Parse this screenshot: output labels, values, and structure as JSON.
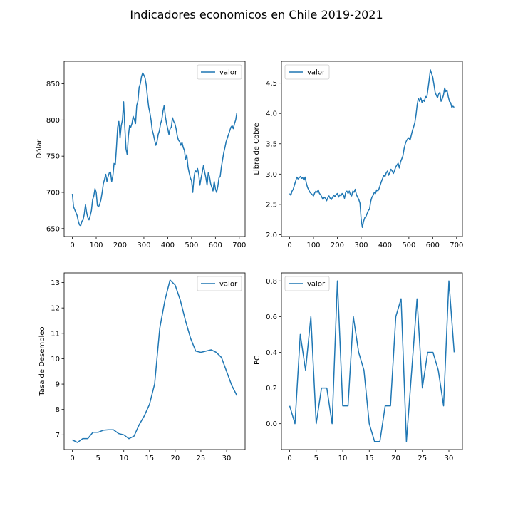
{
  "title": "Indicadores economicos en Chile 2019-2021",
  "colors": {
    "line": "#1f77b4",
    "axis": "#000000",
    "legend_border": "#cccccc",
    "background": "#ffffff"
  },
  "chart_data": [
    {
      "type": "line",
      "ylabel": "Dólar",
      "xlabel": "",
      "legend": "valor",
      "legend_loc": "upper right",
      "xlim": [
        -34.5,
        724.5
      ],
      "ylim": [
        639,
        881
      ],
      "xticks": [
        0,
        100,
        200,
        300,
        400,
        500,
        600,
        700
      ],
      "yticks": [
        650,
        700,
        750,
        800,
        850
      ],
      "x": [
        0,
        5,
        10,
        15,
        20,
        25,
        30,
        35,
        40,
        45,
        50,
        55,
        60,
        65,
        70,
        75,
        80,
        85,
        90,
        95,
        100,
        105,
        110,
        115,
        120,
        125,
        130,
        135,
        140,
        145,
        150,
        155,
        160,
        165,
        170,
        175,
        180,
        185,
        190,
        195,
        200,
        205,
        210,
        215,
        220,
        225,
        230,
        235,
        240,
        245,
        250,
        255,
        260,
        265,
        270,
        275,
        280,
        285,
        290,
        295,
        300,
        305,
        310,
        315,
        320,
        325,
        330,
        335,
        340,
        345,
        350,
        355,
        360,
        365,
        370,
        375,
        380,
        385,
        390,
        395,
        400,
        405,
        410,
        415,
        420,
        425,
        430,
        435,
        440,
        445,
        450,
        455,
        460,
        465,
        470,
        475,
        480,
        485,
        490,
        495,
        500,
        505,
        510,
        515,
        520,
        525,
        530,
        535,
        540,
        545,
        550,
        555,
        560,
        565,
        570,
        575,
        580,
        585,
        590,
        595,
        600,
        605,
        610,
        615,
        620,
        625,
        630,
        635,
        640,
        645,
        650,
        655,
        660,
        665,
        670,
        675,
        680,
        685,
        690
      ],
      "y": [
        698,
        680,
        676,
        672,
        668,
        660,
        655,
        654,
        660,
        662,
        670,
        683,
        672,
        665,
        662,
        668,
        675,
        690,
        695,
        705,
        700,
        682,
        680,
        684,
        690,
        700,
        712,
        718,
        725,
        715,
        722,
        727,
        728,
        715,
        723,
        740,
        738,
        762,
        790,
        798,
        775,
        792,
        800,
        825,
        790,
        760,
        752,
        778,
        792,
        790,
        795,
        805,
        800,
        795,
        820,
        826,
        845,
        850,
        860,
        865,
        862,
        858,
        848,
        832,
        818,
        810,
        800,
        786,
        780,
        772,
        765,
        770,
        780,
        785,
        795,
        800,
        812,
        820,
        805,
        795,
        788,
        780,
        788,
        790,
        803,
        798,
        795,
        788,
        778,
        772,
        770,
        765,
        769,
        762,
        758,
        745,
        752,
        735,
        727,
        720,
        716,
        700,
        720,
        730,
        728,
        733,
        725,
        710,
        720,
        728,
        737,
        728,
        720,
        710,
        727,
        722,
        712,
        707,
        702,
        715,
        705,
        700,
        708,
        720,
        722,
        735,
        745,
        755,
        762,
        770,
        775,
        780,
        785,
        790,
        792,
        788,
        795,
        800,
        810
      ]
    },
    {
      "type": "line",
      "ylabel": "Libra de Cobre",
      "xlabel": "",
      "legend": "valor",
      "legend_loc": "upper left",
      "xlim": [
        -34.5,
        724.5
      ],
      "ylim": [
        1.97,
        4.86
      ],
      "xticks": [
        0,
        100,
        200,
        300,
        400,
        500,
        600,
        700
      ],
      "yticks": [
        2.0,
        2.5,
        3.0,
        3.5,
        4.0,
        4.5
      ],
      "x": [
        0,
        5,
        10,
        15,
        20,
        25,
        30,
        35,
        40,
        45,
        50,
        55,
        60,
        65,
        70,
        75,
        80,
        85,
        90,
        95,
        100,
        105,
        110,
        115,
        120,
        125,
        130,
        135,
        140,
        145,
        150,
        155,
        160,
        165,
        170,
        175,
        180,
        185,
        190,
        195,
        200,
        205,
        210,
        215,
        220,
        225,
        230,
        235,
        240,
        245,
        250,
        255,
        260,
        265,
        270,
        275,
        280,
        285,
        290,
        295,
        300,
        305,
        310,
        315,
        320,
        325,
        330,
        335,
        340,
        345,
        350,
        355,
        360,
        365,
        370,
        375,
        380,
        385,
        390,
        395,
        400,
        405,
        410,
        415,
        420,
        425,
        430,
        435,
        440,
        445,
        450,
        455,
        460,
        465,
        470,
        475,
        480,
        485,
        490,
        495,
        500,
        505,
        510,
        515,
        520,
        525,
        530,
        535,
        540,
        545,
        550,
        555,
        560,
        565,
        570,
        575,
        580,
        585,
        590,
        595,
        600,
        605,
        610,
        615,
        620,
        625,
        630,
        635,
        640,
        645,
        650,
        655,
        660,
        665,
        670,
        675,
        680,
        685,
        690
      ],
      "y": [
        2.68,
        2.65,
        2.72,
        2.75,
        2.82,
        2.88,
        2.95,
        2.92,
        2.94,
        2.96,
        2.93,
        2.94,
        2.9,
        2.95,
        2.85,
        2.78,
        2.74,
        2.7,
        2.68,
        2.66,
        2.64,
        2.69,
        2.72,
        2.7,
        2.74,
        2.68,
        2.66,
        2.62,
        2.58,
        2.62,
        2.6,
        2.56,
        2.61,
        2.64,
        2.6,
        2.58,
        2.62,
        2.65,
        2.63,
        2.66,
        2.68,
        2.62,
        2.66,
        2.64,
        2.68,
        2.66,
        2.6,
        2.7,
        2.72,
        2.68,
        2.72,
        2.66,
        2.64,
        2.72,
        2.7,
        2.75,
        2.66,
        2.62,
        2.58,
        2.52,
        2.25,
        2.12,
        2.22,
        2.28,
        2.3,
        2.35,
        2.4,
        2.42,
        2.55,
        2.62,
        2.65,
        2.7,
        2.68,
        2.74,
        2.72,
        2.76,
        2.82,
        2.88,
        2.93,
        2.98,
        2.96,
        3.02,
        3.05,
        2.98,
        3.03,
        3.08,
        3.05,
        3.01,
        3.06,
        3.12,
        3.15,
        3.18,
        3.1,
        3.2,
        3.25,
        3.3,
        3.42,
        3.5,
        3.55,
        3.58,
        3.6,
        3.56,
        3.64,
        3.72,
        3.78,
        3.85,
        3.98,
        4.15,
        4.25,
        4.2,
        4.26,
        4.18,
        4.22,
        4.2,
        4.28,
        4.26,
        4.4,
        4.55,
        4.72,
        4.66,
        4.6,
        4.48,
        4.35,
        4.3,
        4.26,
        4.32,
        4.35,
        4.2,
        4.24,
        4.3,
        4.42,
        4.36,
        4.38,
        4.28,
        4.2,
        4.18,
        4.1,
        4.12,
        4.1
      ]
    },
    {
      "type": "line",
      "ylabel": "Tasa de Desempleo",
      "xlabel": "",
      "legend": "valor",
      "legend_loc": "upper right",
      "xlim": [
        -1.6,
        33.6
      ],
      "ylim": [
        6.42,
        13.38
      ],
      "xticks": [
        0,
        5,
        10,
        15,
        20,
        25,
        30
      ],
      "yticks": [
        7,
        8,
        9,
        10,
        11,
        12,
        13
      ],
      "x": [
        0,
        1,
        2,
        3,
        4,
        5,
        6,
        7,
        8,
        9,
        10,
        11,
        12,
        13,
        14,
        15,
        16,
        17,
        18,
        19,
        20,
        21,
        22,
        23,
        24,
        25,
        26,
        27,
        28,
        29,
        30,
        31,
        32
      ],
      "y": [
        6.8,
        6.7,
        6.85,
        6.85,
        7.1,
        7.1,
        7.18,
        7.2,
        7.2,
        7.05,
        7.0,
        6.85,
        6.95,
        7.4,
        7.75,
        8.2,
        9.0,
        11.2,
        12.3,
        13.1,
        12.9,
        12.3,
        11.5,
        10.8,
        10.3,
        10.25,
        10.3,
        10.35,
        10.25,
        10.05,
        9.5,
        8.95,
        8.55
      ]
    },
    {
      "type": "line",
      "ylabel": "IPC",
      "xlabel": "",
      "legend": "valor",
      "legend_loc": "upper left",
      "xlim": [
        -1.55,
        32.55
      ],
      "ylim": [
        -0.145,
        0.845
      ],
      "xticks": [
        0,
        5,
        10,
        15,
        20,
        25,
        30
      ],
      "yticks": [
        0.0,
        0.2,
        0.4,
        0.6,
        0.8
      ],
      "x": [
        0,
        1,
        2,
        3,
        4,
        5,
        6,
        7,
        8,
        9,
        10,
        11,
        12,
        13,
        14,
        15,
        16,
        17,
        18,
        19,
        20,
        21,
        22,
        23,
        24,
        25,
        26,
        27,
        28,
        29,
        30,
        31
      ],
      "y": [
        0.1,
        0.0,
        0.5,
        0.3,
        0.6,
        0.0,
        0.2,
        0.2,
        0.0,
        0.8,
        0.1,
        0.1,
        0.6,
        0.4,
        0.3,
        0.0,
        -0.1,
        -0.1,
        0.1,
        0.1,
        0.6,
        0.7,
        -0.1,
        0.3,
        0.7,
        0.2,
        0.4,
        0.4,
        0.3,
        0.1,
        0.8,
        0.4
      ]
    }
  ]
}
